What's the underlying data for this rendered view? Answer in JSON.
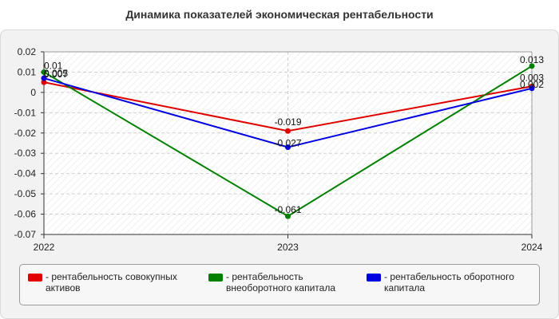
{
  "title": "Динамика показателей экономическая рентабельности",
  "chart_data": {
    "type": "line",
    "x": [
      "2022",
      "2023",
      "2024"
    ],
    "ylim": [
      -0.07,
      0.02
    ],
    "yticks": [
      "0.02",
      "0.01",
      "0",
      "-0.01",
      "-0.02",
      "-0.03",
      "-0.04",
      "-0.05",
      "-0.06",
      "-0.07"
    ],
    "grid": true,
    "legend_position": "bottom",
    "series": [
      {
        "name": "рентабельность совокупных активов",
        "color": "#e00000",
        "values": [
          0.005,
          -0.019,
          0.003
        ],
        "labels": [
          "0.005",
          "-0.019",
          "0.003"
        ]
      },
      {
        "name": "рентабельность внеоборотного капитала",
        "color": "#008000",
        "values": [
          0.01,
          -0.061,
          0.013
        ],
        "labels": [
          "0.01",
          "-0.061",
          "0.013"
        ]
      },
      {
        "name": "рентабельность оборотного капитала",
        "color": "#0000e0",
        "values": [
          0.007,
          -0.027,
          0.002
        ],
        "labels": [
          "0.007",
          "-0.027",
          "0.002"
        ]
      }
    ]
  },
  "legend": [
    {
      "line1": "- рентабельность совокупных",
      "line2": "активов",
      "color": "#e00000"
    },
    {
      "line1": "- рентабельность",
      "line2": "внеоборотного капитала",
      "color": "#008000"
    },
    {
      "line1": "- рентабельность оборотного",
      "line2": "капитала",
      "color": "#0000e0"
    }
  ]
}
